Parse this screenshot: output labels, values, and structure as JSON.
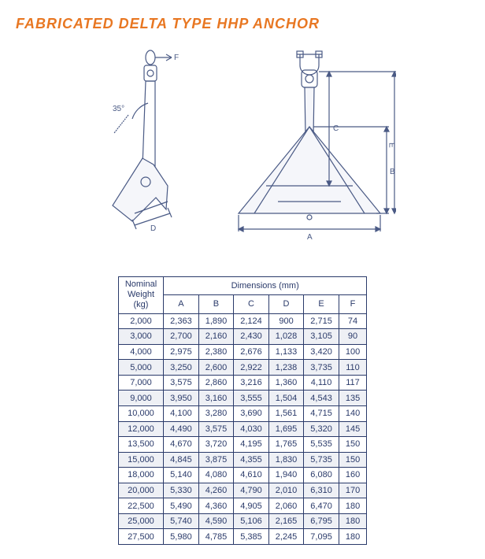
{
  "title": "FABRICATED DELTA TYPE HHP ANCHOR",
  "title_color": "#e87722",
  "diagram": {
    "side_view": {
      "angle_label": "35°",
      "dim_F": "F",
      "dim_D": "D"
    },
    "front_view": {
      "dim_A": "A",
      "dim_B": "B",
      "dim_C": "C",
      "dim_E": "E"
    },
    "stroke_color": "#4a5a85"
  },
  "table": {
    "header_weight_line1": "Nominal",
    "header_weight_line2": "Weight",
    "header_weight_line3": "(kg)",
    "header_dimensions": "Dimensions (mm)",
    "columns": [
      "A",
      "B",
      "C",
      "D",
      "E",
      "F"
    ],
    "rows": [
      {
        "w": "2,000",
        "vals": [
          "2,363",
          "1,890",
          "2,124",
          "900",
          "2,715",
          "74"
        ],
        "alt": false
      },
      {
        "w": "3,000",
        "vals": [
          "2,700",
          "2,160",
          "2,430",
          "1,028",
          "3,105",
          "90"
        ],
        "alt": true
      },
      {
        "w": "4,000",
        "vals": [
          "2,975",
          "2,380",
          "2,676",
          "1,133",
          "3,420",
          "100"
        ],
        "alt": false
      },
      {
        "w": "5,000",
        "vals": [
          "3,250",
          "2,600",
          "2,922",
          "1,238",
          "3,735",
          "110"
        ],
        "alt": true
      },
      {
        "w": "7,000",
        "vals": [
          "3,575",
          "2,860",
          "3,216",
          "1,360",
          "4,110",
          "117"
        ],
        "alt": false
      },
      {
        "w": "9,000",
        "vals": [
          "3,950",
          "3,160",
          "3,555",
          "1,504",
          "4,543",
          "135"
        ],
        "alt": true
      },
      {
        "w": "10,000",
        "vals": [
          "4,100",
          "3,280",
          "3,690",
          "1,561",
          "4,715",
          "140"
        ],
        "alt": false
      },
      {
        "w": "12,000",
        "vals": [
          "4,490",
          "3,575",
          "4,030",
          "1,695",
          "5,320",
          "145"
        ],
        "alt": true
      },
      {
        "w": "13,500",
        "vals": [
          "4,670",
          "3,720",
          "4,195",
          "1,765",
          "5,535",
          "150"
        ],
        "alt": false
      },
      {
        "w": "15,000",
        "vals": [
          "4,845",
          "3,875",
          "4,355",
          "1,830",
          "5,735",
          "150"
        ],
        "alt": true
      },
      {
        "w": "18,000",
        "vals": [
          "5,140",
          "4,080",
          "4,610",
          "1,940",
          "6,080",
          "160"
        ],
        "alt": false
      },
      {
        "w": "20,000",
        "vals": [
          "5,330",
          "4,260",
          "4,790",
          "2,010",
          "6,310",
          "170"
        ],
        "alt": true
      },
      {
        "w": "22,500",
        "vals": [
          "5,490",
          "4,360",
          "4,905",
          "2,060",
          "6,470",
          "180"
        ],
        "alt": false
      },
      {
        "w": "25,000",
        "vals": [
          "5,740",
          "4,590",
          "5,106",
          "2,165",
          "6,795",
          "180"
        ],
        "alt": true
      },
      {
        "w": "27,500",
        "vals": [
          "5,980",
          "4,785",
          "5,385",
          "2,245",
          "7,095",
          "180"
        ],
        "alt": false
      }
    ],
    "text_color": "#2a3a6a",
    "alt_bg": "#eef0f5"
  }
}
